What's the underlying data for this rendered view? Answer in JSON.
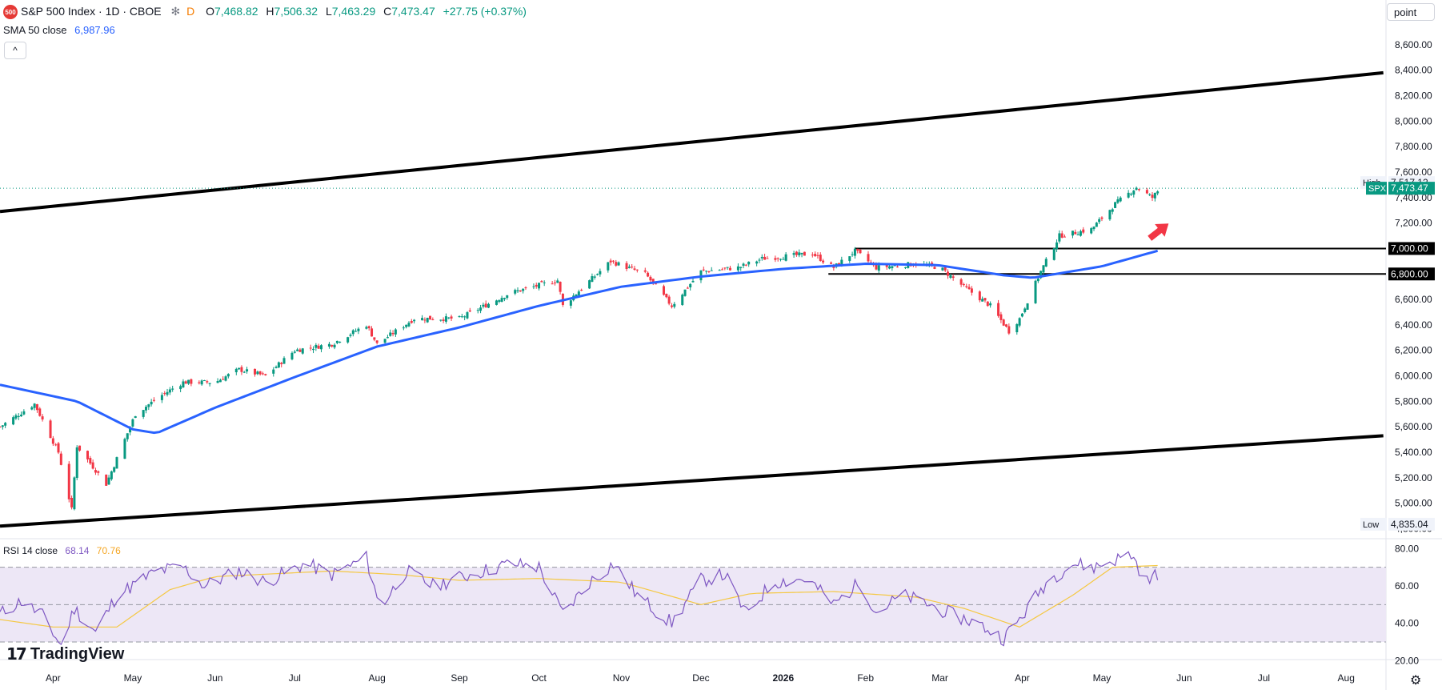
{
  "header": {
    "symbol_badge": "500",
    "title": "S&P 500 Index · 1D · CBOE",
    "snowflake_icon": "snowflake-icon",
    "d_badge": "D",
    "o_label": "O",
    "o_value": "7,468.82",
    "h_label": "H",
    "h_value": "7,506.32",
    "l_label": "L",
    "l_value": "7,463.29",
    "c_label": "C",
    "c_value": "7,473.47",
    "change": "+27.75 (+0.37%)",
    "sma_label": "SMA 50 close",
    "sma_value": "6,987.96",
    "collapse_icon": "chevron-up-icon"
  },
  "rsi_header": {
    "label": "RSI 14 close",
    "rsi_value": "68.14",
    "ma_value": "70.76"
  },
  "unit_label": "point",
  "brand": {
    "logo_icon": "tradingview-logo-icon",
    "name": "TradingView"
  },
  "settings_icon": "gear-icon",
  "colors": {
    "up": "#089981",
    "down": "#f23645",
    "sma": "#2962ff",
    "rsi": "#7e57c2",
    "rsi_ma": "#f5c842",
    "rsi_band": "#ede7f6",
    "arrow": "#f23645"
  },
  "chart_data": [
    {
      "type": "candlestick",
      "title": "S&P 500 Index · 1D · CBOE",
      "series_name": "SPX",
      "y_ticks": [
        4800,
        5000,
        5200,
        5400,
        5600,
        5800,
        6000,
        6200,
        6400,
        6600,
        6800,
        7000,
        7200,
        7400,
        7600,
        7800,
        8000,
        8200,
        8400,
        8600
      ],
      "y_tick_labels": [
        "4,800.00",
        "5,000.00",
        "5,200.00",
        "5,400.00",
        "5,600.00",
        "5,800.00",
        "6,000.00",
        "6,200.00",
        "6,400.00",
        "6,600.00",
        "6,800.00",
        "7,000.00",
        "7,200.00",
        "7,400.00",
        "7,600.00",
        "7,800.00",
        "8,000.00",
        "8,200.00",
        "8,400.00",
        "8,600.00"
      ],
      "ylim": [
        4740,
        8700
      ],
      "x_months": [
        "Apr",
        "May",
        "Jun",
        "Jul",
        "Aug",
        "Sep",
        "Oct",
        "Nov",
        "Dec",
        "2026",
        "Feb",
        "Mar",
        "Apr",
        "May",
        "Jun",
        "Jul",
        "Aug"
      ],
      "price_labels": [
        {
          "name": "High",
          "value": "7,517.12",
          "price": 7517.12
        },
        {
          "name": "SPX",
          "value": "7,473.47",
          "price": 7473.47
        },
        {
          "name": "",
          "value": "7,000.00",
          "price": 7000
        },
        {
          "name": "",
          "value": "6,800.00",
          "price": 6800
        },
        {
          "name": "Low",
          "value": "4,835.04",
          "price": 4835.04
        }
      ],
      "horizontal_levels": [
        7000,
        6800
      ],
      "trendlines": [
        {
          "from": [
            "2025-03-12",
            7290
          ],
          "to": [
            "2026-08-15",
            8380
          ]
        },
        {
          "from": [
            "2025-03-12",
            4820
          ],
          "to": [
            "2026-08-15",
            5530
          ]
        }
      ],
      "close_anchors": [
        [
          "2025-03-12",
          5600
        ],
        [
          "2025-03-25",
          5780
        ],
        [
          "2025-04-03",
          5400
        ],
        [
          "2025-04-08",
          4950
        ],
        [
          "2025-04-10",
          5450
        ],
        [
          "2025-04-21",
          5150
        ],
        [
          "2025-05-02",
          5700
        ],
        [
          "2025-05-12",
          5850
        ],
        [
          "2025-05-20",
          5950
        ],
        [
          "2025-06-01",
          5950
        ],
        [
          "2025-06-10",
          6050
        ],
        [
          "2025-06-20",
          6000
        ],
        [
          "2025-07-01",
          6200
        ],
        [
          "2025-07-15",
          6250
        ],
        [
          "2025-07-28",
          6400
        ],
        [
          "2025-08-01",
          6250
        ],
        [
          "2025-08-15",
          6450
        ],
        [
          "2025-09-01",
          6450
        ],
        [
          "2025-09-20",
          6650
        ],
        [
          "2025-10-08",
          6750
        ],
        [
          "2025-10-10",
          6550
        ],
        [
          "2025-10-28",
          6900
        ],
        [
          "2025-11-10",
          6800
        ],
        [
          "2025-11-20",
          6550
        ],
        [
          "2025-12-01",
          6820
        ],
        [
          "2025-12-15",
          6850
        ],
        [
          "2025-12-24",
          6920
        ],
        [
          "2026-01-12",
          6960
        ],
        [
          "2026-01-20",
          6850
        ],
        [
          "2026-01-28",
          6980
        ],
        [
          "2026-02-05",
          6850
        ],
        [
          "2026-02-20",
          6880
        ],
        [
          "2026-03-01",
          6850
        ],
        [
          "2026-03-10",
          6700
        ],
        [
          "2026-03-20",
          6550
        ],
        [
          "2026-03-27",
          6350
        ],
        [
          "2026-03-31",
          6450
        ],
        [
          "2026-04-08",
          6820
        ],
        [
          "2026-04-15",
          7100
        ],
        [
          "2026-04-27",
          7150
        ],
        [
          "2026-05-06",
          7350
        ],
        [
          "2026-05-14",
          7480
        ],
        [
          "2026-05-20",
          7400
        ],
        [
          "2026-05-23",
          7473
        ]
      ],
      "sma50_anchors": [
        [
          "2025-03-12",
          5930
        ],
        [
          "2025-04-10",
          5800
        ],
        [
          "2025-05-01",
          5580
        ],
        [
          "2025-05-10",
          5550
        ],
        [
          "2025-06-01",
          5750
        ],
        [
          "2025-07-01",
          5990
        ],
        [
          "2025-08-01",
          6230
        ],
        [
          "2025-09-01",
          6380
        ],
        [
          "2025-10-01",
          6550
        ],
        [
          "2025-11-01",
          6700
        ],
        [
          "2025-12-01",
          6780
        ],
        [
          "2026-01-01",
          6840
        ],
        [
          "2026-02-01",
          6880
        ],
        [
          "2026-02-28",
          6870
        ],
        [
          "2026-03-25",
          6790
        ],
        [
          "2026-04-05",
          6770
        ],
        [
          "2026-05-01",
          6860
        ],
        [
          "2026-05-23",
          6988
        ]
      ]
    },
    {
      "type": "line",
      "title": "RSI 14 close",
      "series": [
        {
          "name": "RSI 14 close",
          "value": "68.14"
        },
        {
          "name": "",
          "value": "70.76"
        }
      ],
      "y_ticks": [
        20,
        40,
        60,
        80
      ],
      "y_tick_labels": [
        "20.00",
        "40.00",
        "60.00",
        "80.00"
      ],
      "ylim": [
        18,
        84
      ],
      "bands": [
        30,
        50,
        70
      ],
      "rsi_anchors": [
        [
          "2025-03-12",
          45
        ],
        [
          "2025-03-20",
          52
        ],
        [
          "2025-03-28",
          44
        ],
        [
          "2025-04-04",
          28
        ],
        [
          "2025-04-09",
          48
        ],
        [
          "2025-04-17",
          35
        ],
        [
          "2025-04-25",
          55
        ],
        [
          "2025-05-10",
          68
        ],
        [
          "2025-05-20",
          70
        ],
        [
          "2025-05-28",
          60
        ],
        [
          "2025-06-10",
          68
        ],
        [
          "2025-06-20",
          62
        ],
        [
          "2025-07-05",
          72
        ],
        [
          "2025-07-15",
          66
        ],
        [
          "2025-07-28",
          75
        ],
        [
          "2025-08-02",
          48
        ],
        [
          "2025-08-12",
          68
        ],
        [
          "2025-08-22",
          60
        ],
        [
          "2025-09-05",
          66
        ],
        [
          "2025-09-20",
          72
        ],
        [
          "2025-10-01",
          70
        ],
        [
          "2025-10-10",
          45
        ],
        [
          "2025-10-20",
          62
        ],
        [
          "2025-10-29",
          72
        ],
        [
          "2025-11-07",
          55
        ],
        [
          "2025-11-20",
          40
        ],
        [
          "2025-12-01",
          63
        ],
        [
          "2025-12-10",
          66
        ],
        [
          "2025-12-18",
          45
        ],
        [
          "2025-12-28",
          62
        ],
        [
          "2026-01-10",
          64
        ],
        [
          "2026-01-20",
          50
        ],
        [
          "2026-01-30",
          62
        ],
        [
          "2026-02-05",
          46
        ],
        [
          "2026-02-15",
          55
        ],
        [
          "2026-02-25",
          50
        ],
        [
          "2026-03-05",
          45
        ],
        [
          "2026-03-15",
          40
        ],
        [
          "2026-03-25",
          32
        ],
        [
          "2026-03-31",
          42
        ],
        [
          "2026-04-10",
          62
        ],
        [
          "2026-04-20",
          72
        ],
        [
          "2026-04-28",
          70
        ],
        [
          "2026-05-06",
          74
        ],
        [
          "2026-05-12",
          77
        ],
        [
          "2026-05-18",
          62
        ],
        [
          "2026-05-23",
          68
        ]
      ],
      "ma_anchors": [
        [
          "2025-03-12",
          42
        ],
        [
          "2025-04-01",
          38
        ],
        [
          "2025-04-25",
          38
        ],
        [
          "2025-05-15",
          58
        ],
        [
          "2025-06-01",
          65
        ],
        [
          "2025-07-15",
          68
        ],
        [
          "2025-08-10",
          66
        ],
        [
          "2025-09-01",
          63
        ],
        [
          "2025-10-01",
          64
        ],
        [
          "2025-11-01",
          62
        ],
        [
          "2025-12-01",
          50
        ],
        [
          "2025-12-20",
          56
        ],
        [
          "2026-01-20",
          57
        ],
        [
          "2026-02-20",
          54
        ],
        [
          "2026-03-10",
          48
        ],
        [
          "2026-03-31",
          38
        ],
        [
          "2026-04-20",
          55
        ],
        [
          "2026-05-05",
          70
        ],
        [
          "2026-05-23",
          71
        ]
      ]
    }
  ]
}
